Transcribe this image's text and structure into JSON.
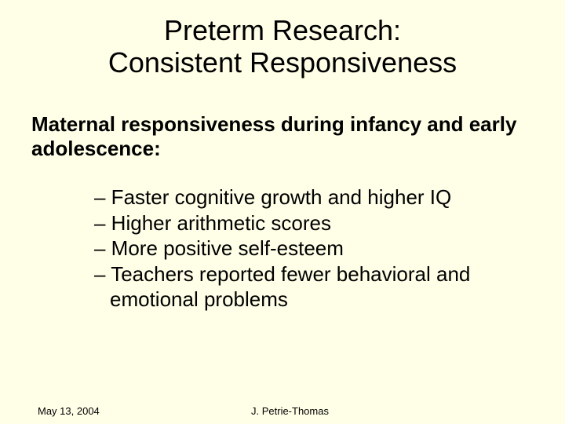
{
  "title_line1": "Preterm Research:",
  "title_line2": "Consistent Responsiveness",
  "subtitle": "Maternal responsiveness during infancy and early adolescence:",
  "bullets": [
    "– Faster cognitive growth and higher IQ",
    "– Higher arithmetic scores",
    "– More positive self-esteem",
    "– Teachers reported fewer behavioral and emotional problems"
  ],
  "footer_date": "May 13, 2004",
  "footer_author": "J. Petrie-Thomas",
  "colors": {
    "background": "#ffffe8",
    "text": "#000000"
  },
  "typography": {
    "title_fontsize": 36,
    "subtitle_fontsize": 26,
    "bullet_fontsize": 26,
    "footer_fontsize": 13,
    "font_family": "Arial"
  }
}
